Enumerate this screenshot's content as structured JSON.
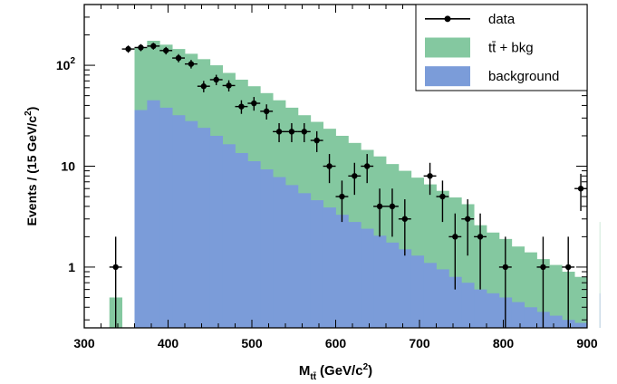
{
  "chart_data": {
    "type": "histogram",
    "xlabel": "M",
    "xlabel_sub": "tt̄",
    "xlabel_units": "(GeV/c",
    "xlabel_units_sup": "2",
    "xlabel_units_end": ")",
    "ylabel": "Events / (15 GeV/c",
    "ylabel_sup": "2",
    "ylabel_end": ")",
    "xlim": [
      300,
      900
    ],
    "ylim": [
      0.25,
      400
    ],
    "yscale": "log",
    "x_ticks": [
      "300",
      "400",
      "500",
      "600",
      "700",
      "800",
      "900"
    ],
    "y_ticks": [
      {
        "value": 1,
        "label": "1"
      },
      {
        "value": 10,
        "label": "10"
      },
      {
        "value": 100,
        "label": "10",
        "sup": "2"
      }
    ],
    "bin_width": 15,
    "bin_edges_start": 330,
    "legend": {
      "position": "top-right",
      "entries": [
        {
          "label": "data",
          "style": "marker-line",
          "color": "#000000"
        },
        {
          "label": "tt̄ + bkg",
          "style": "fill",
          "color": "#84c8a0"
        },
        {
          "label": "background",
          "style": "fill",
          "color": "#7b9cd9"
        }
      ]
    },
    "series": [
      {
        "name": "tt̄ + bkg",
        "color": "#84c8a0",
        "values": [
          0.5,
          0.25,
          150,
          175,
          160,
          145,
          130,
          115,
          100,
          84,
          72,
          62,
          53,
          45,
          38,
          32,
          27.5,
          23.5,
          20,
          17,
          14.5,
          12.5,
          10.5,
          9,
          7.7,
          6.6,
          5.7,
          4.9,
          4.2,
          2.6,
          2.2,
          1.9,
          1.6,
          1.4,
          1.2,
          1.05,
          0.9,
          0.8,
          0.7,
          2.8
        ]
      },
      {
        "name": "background",
        "color": "#7b9cd9",
        "values": [
          0.25,
          0.25,
          36,
          45,
          38,
          32,
          28,
          24,
          20,
          16.5,
          13.5,
          11.2,
          9.3,
          7.8,
          6.5,
          5.4,
          4.6,
          3.9,
          3.3,
          2.8,
          2.4,
          2.05,
          1.75,
          1.5,
          1.3,
          1.1,
          0.95,
          0.8,
          0.7,
          0.6,
          0.55,
          0.5,
          0.45,
          0.4,
          0.36,
          0.33,
          0.3,
          0.28,
          0.27,
          0.55
        ]
      }
    ],
    "data_points": [
      {
        "x": 337.5,
        "y": 1,
        "err_lo": 0.75,
        "err_hi": 1.0
      },
      {
        "x": 352.5,
        "y": 145,
        "err_lo": 12,
        "err_hi": 12
      },
      {
        "x": 367.5,
        "y": 150,
        "err_lo": 12,
        "err_hi": 12
      },
      {
        "x": 382.5,
        "y": 155,
        "err_lo": 12,
        "err_hi": 12
      },
      {
        "x": 397.5,
        "y": 140,
        "err_lo": 12,
        "err_hi": 12
      },
      {
        "x": 412.5,
        "y": 118,
        "err_lo": 11,
        "err_hi": 11
      },
      {
        "x": 427.5,
        "y": 103,
        "err_lo": 10,
        "err_hi": 10
      },
      {
        "x": 442.5,
        "y": 62,
        "err_lo": 8,
        "err_hi": 8
      },
      {
        "x": 457.5,
        "y": 72,
        "err_lo": 8.5,
        "err_hi": 8.5
      },
      {
        "x": 472.5,
        "y": 63,
        "err_lo": 8,
        "err_hi": 8
      },
      {
        "x": 487.5,
        "y": 39,
        "err_lo": 6,
        "err_hi": 6
      },
      {
        "x": 502.5,
        "y": 42,
        "err_lo": 6.5,
        "err_hi": 6.5
      },
      {
        "x": 517.5,
        "y": 35,
        "err_lo": 6,
        "err_hi": 6
      },
      {
        "x": 532.5,
        "y": 22,
        "err_lo": 4.7,
        "err_hi": 4.7
      },
      {
        "x": 547.5,
        "y": 22,
        "err_lo": 4.7,
        "err_hi": 4.7
      },
      {
        "x": 562.5,
        "y": 22,
        "err_lo": 4.7,
        "err_hi": 4.7
      },
      {
        "x": 577.5,
        "y": 18,
        "err_lo": 4.2,
        "err_hi": 4.2
      },
      {
        "x": 592.5,
        "y": 10,
        "err_lo": 3.2,
        "err_hi": 3.2
      },
      {
        "x": 607.5,
        "y": 5,
        "err_lo": 2.2,
        "err_hi": 2.2
      },
      {
        "x": 622.5,
        "y": 8,
        "err_lo": 2.8,
        "err_hi": 2.8
      },
      {
        "x": 637.5,
        "y": 10,
        "err_lo": 3.2,
        "err_hi": 3.2
      },
      {
        "x": 652.5,
        "y": 4,
        "err_lo": 2.0,
        "err_hi": 2.0
      },
      {
        "x": 667.5,
        "y": 4,
        "err_lo": 2.0,
        "err_hi": 2.0
      },
      {
        "x": 682.5,
        "y": 3,
        "err_lo": 1.7,
        "err_hi": 1.7
      },
      {
        "x": 712.5,
        "y": 8,
        "err_lo": 2.8,
        "err_hi": 2.8
      },
      {
        "x": 727.5,
        "y": 5,
        "err_lo": 2.2,
        "err_hi": 2.2
      },
      {
        "x": 742.5,
        "y": 2,
        "err_lo": 1.4,
        "err_hi": 1.4
      },
      {
        "x": 757.5,
        "y": 3,
        "err_lo": 1.7,
        "err_hi": 1.7
      },
      {
        "x": 772.5,
        "y": 2,
        "err_lo": 1.4,
        "err_hi": 1.4
      },
      {
        "x": 802.5,
        "y": 1,
        "err_lo": 0.75,
        "err_hi": 1.0
      },
      {
        "x": 847.5,
        "y": 1,
        "err_lo": 0.75,
        "err_hi": 1.0
      },
      {
        "x": 877.5,
        "y": 1,
        "err_lo": 0.75,
        "err_hi": 1.0
      },
      {
        "x": 892.5,
        "y": 6,
        "err_lo": 2.4,
        "err_hi": 2.4
      }
    ]
  }
}
